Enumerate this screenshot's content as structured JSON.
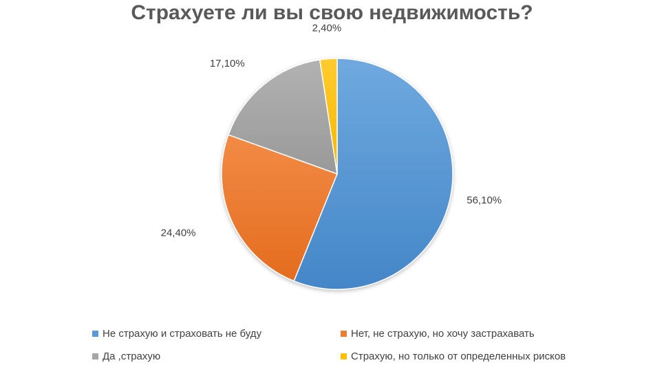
{
  "chart_data": {
    "type": "pie",
    "title": "Страхуете ли вы свою недвижимость?",
    "series": [
      {
        "values": [
          56.1,
          24.4,
          17.1,
          2.4
        ],
        "labels": [
          "56,10%",
          "24,40%",
          "17,10%",
          "2,40%"
        ]
      }
    ],
    "categories": [
      "Не страхую и страховать не буду",
      "Нет, не страхую, но хочу застрахавать",
      "Да ,страхую",
      "Страхую, но только от определенных рисков"
    ],
    "colors": [
      "#5b9bd5",
      "#ed7d31",
      "#a5a5a5",
      "#ffc000"
    ],
    "legend_position": "bottom",
    "start_angle": "12 o'clock, clockwise"
  }
}
